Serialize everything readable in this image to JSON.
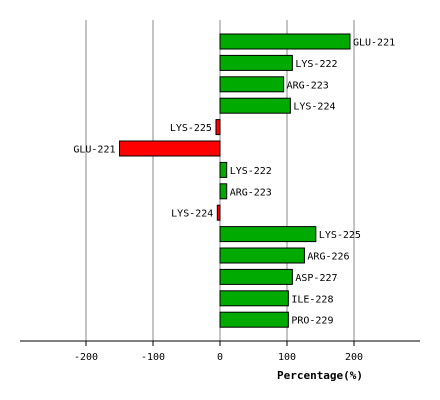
{
  "chart_data": {
    "type": "bar",
    "orientation": "horizontal",
    "title": "",
    "xlabel": "Percentage(%)",
    "ylabel": "",
    "xlim": [
      -290,
      300
    ],
    "xticks": [
      -200,
      -100,
      0,
      100,
      200
    ],
    "xtick_labels": [
      "-200",
      "-100",
      "0",
      "100",
      "200"
    ],
    "grid": "vertical",
    "colors": {
      "positive": "#00aa00",
      "negative": "#ff0000",
      "grid": "#888888",
      "edge": "#000000"
    },
    "bars": [
      {
        "label": "GLU-221",
        "value": 194
      },
      {
        "label": "LYS-222",
        "value": 108
      },
      {
        "label": "ARG-223",
        "value": 95
      },
      {
        "label": "LYS-224",
        "value": 105
      },
      {
        "label": "LYS-225",
        "value": -6
      },
      {
        "label": "GLU-221",
        "value": -150
      },
      {
        "label": "LYS-222",
        "value": 10
      },
      {
        "label": "ARG-223",
        "value": 10
      },
      {
        "label": "LYS-224",
        "value": -4
      },
      {
        "label": "LYS-225",
        "value": 143
      },
      {
        "label": "ARG-226",
        "value": 126
      },
      {
        "label": "ASP-227",
        "value": 108
      },
      {
        "label": "ILE-228",
        "value": 102
      },
      {
        "label": "PRO-229",
        "value": 102
      }
    ]
  }
}
